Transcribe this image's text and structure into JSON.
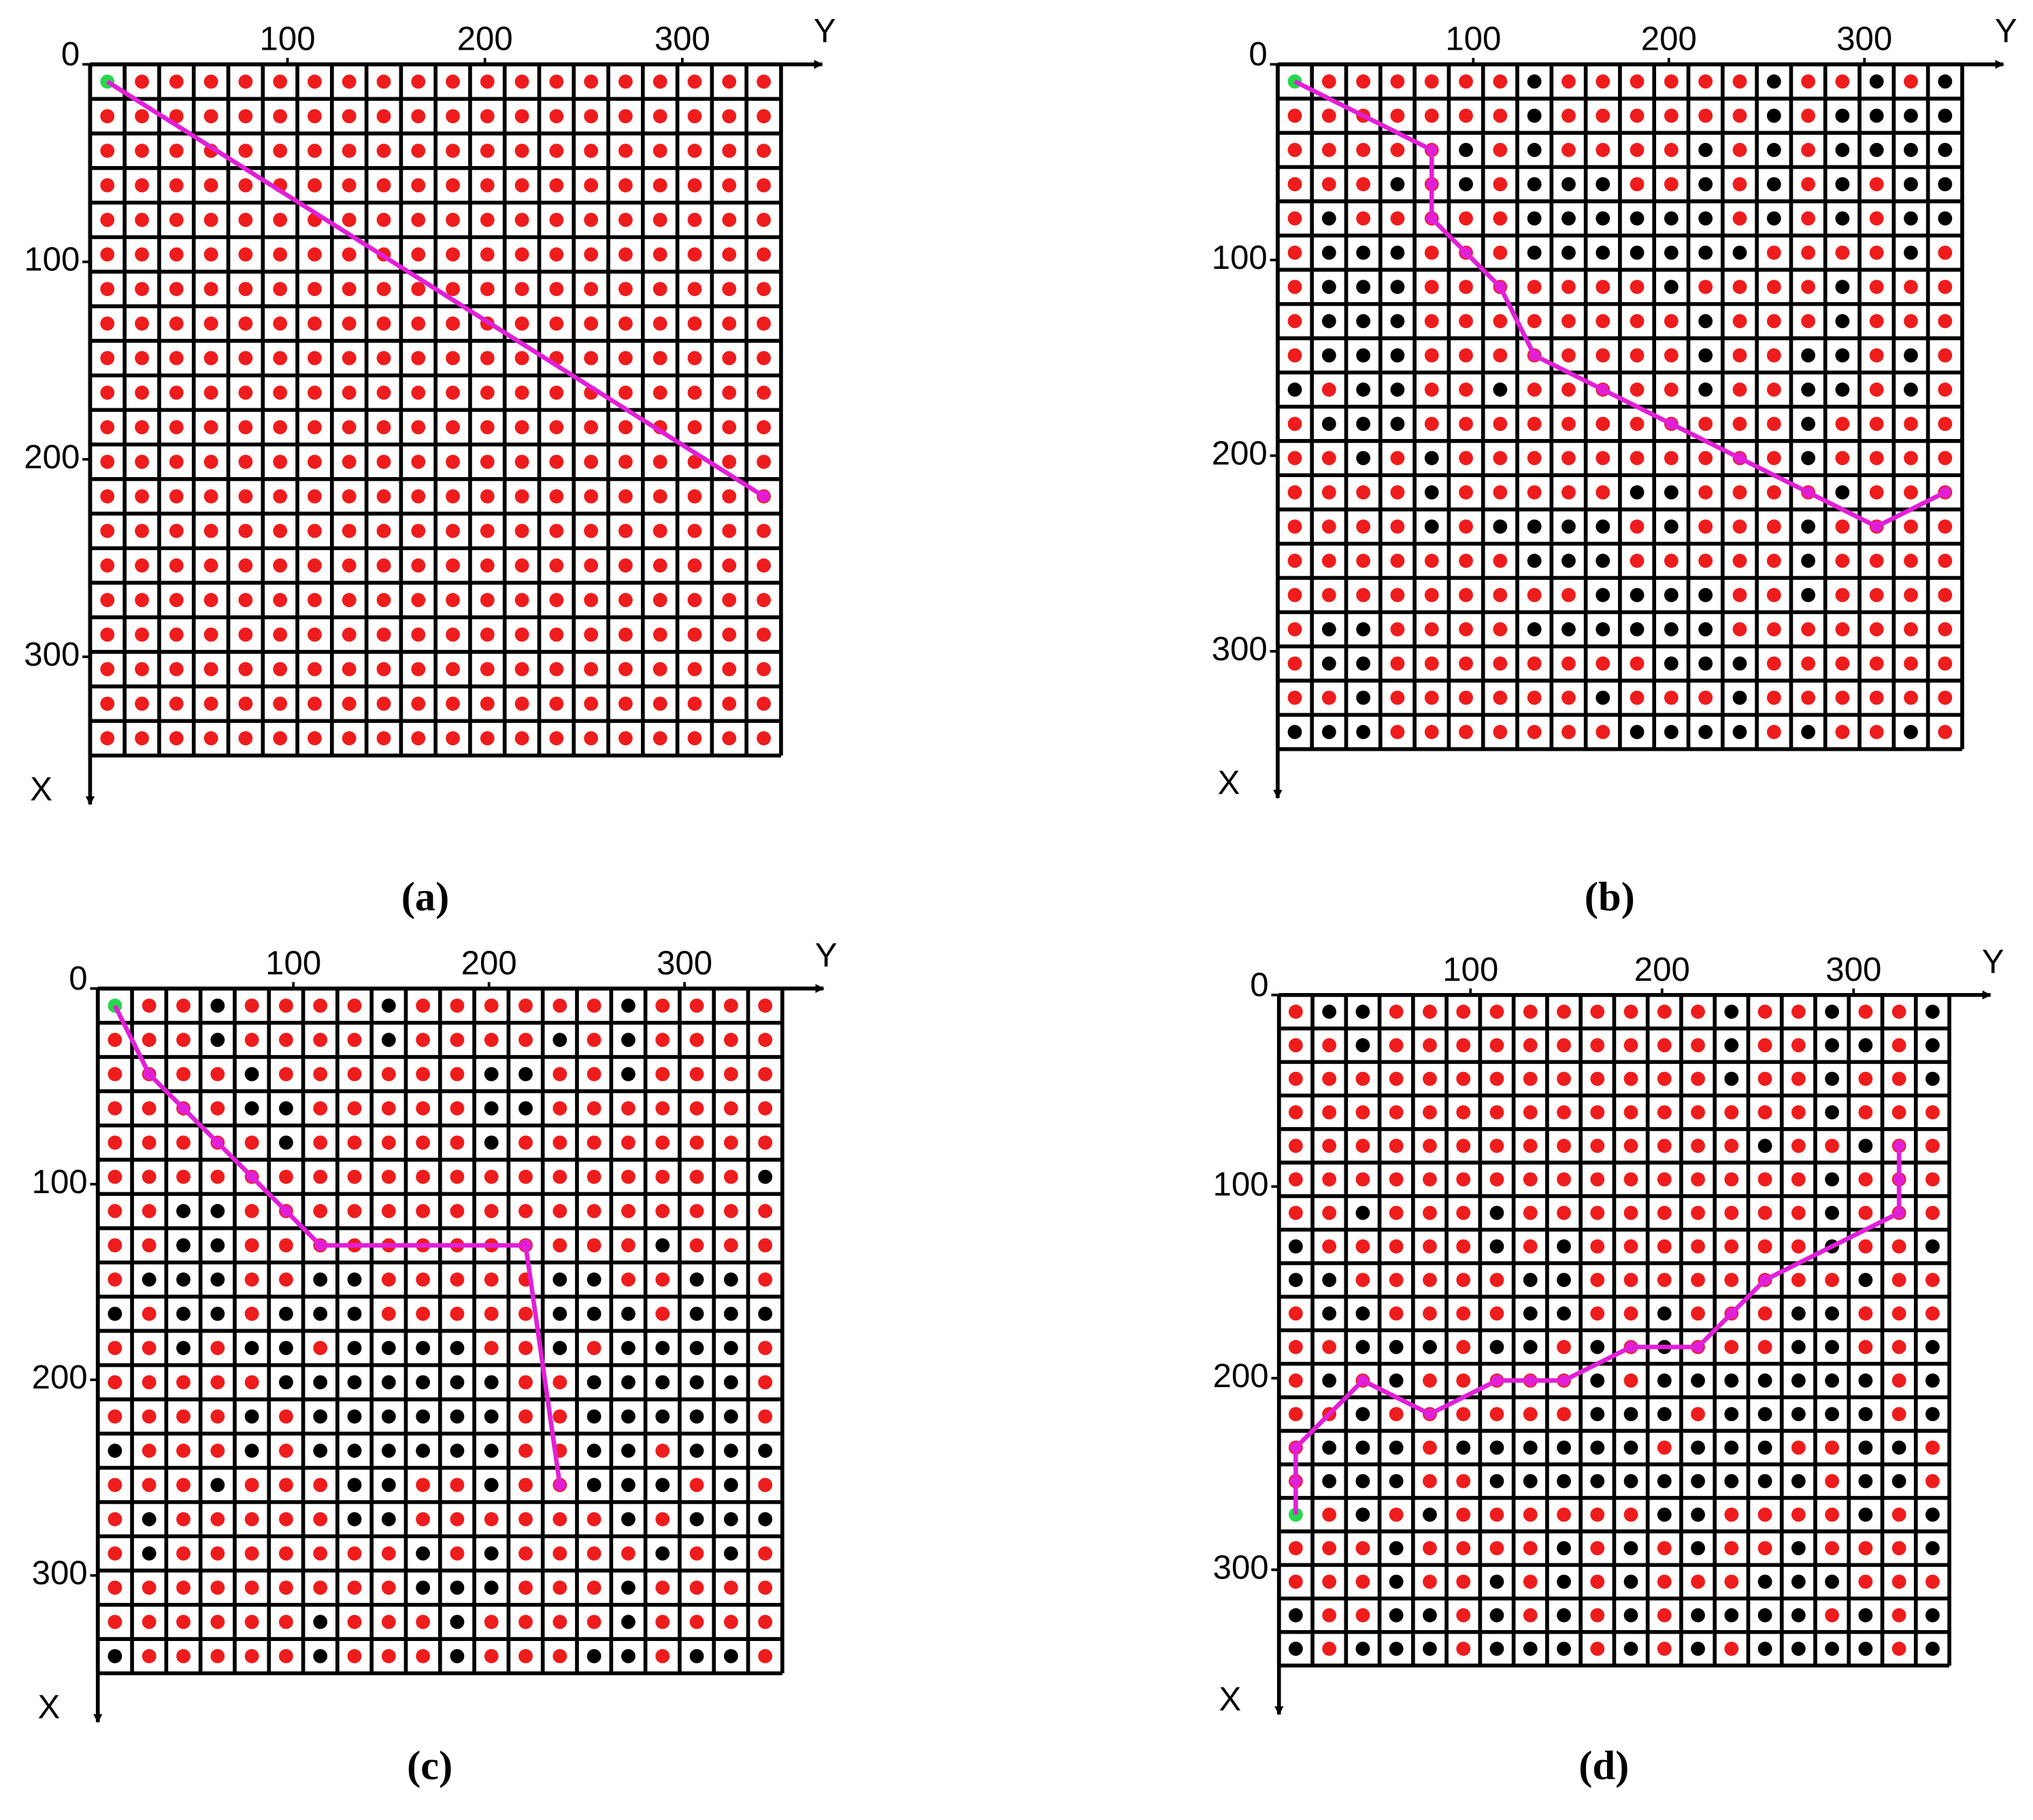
{
  "chart_data": [
    {
      "type": "grid-path",
      "caption": "(a)",
      "xlabel": "X",
      "ylabel": "Y",
      "xlim": [
        0,
        350
      ],
      "ylim": [
        0,
        350
      ],
      "xticks": [
        0,
        100,
        200,
        300
      ],
      "yticks": [
        100,
        200,
        300
      ],
      "grid": [
        "S...................",
        "....................",
        "....................",
        "....................",
        "....................",
        "....................",
        "....................",
        "....................",
        "....................",
        "....................",
        "....................",
        "....................",
        "....................",
        "....................",
        "....................",
        "....................",
        "....................",
        "....................",
        "....................",
        "...................."
      ],
      "path": {
        "x": [
          8.75,
          218.75
        ],
        "y": [
          8.75,
          341.25
        ]
      },
      "colors": {
        "free": "#ee1c1c",
        "obstacle": "#000000",
        "start": "#27d84a",
        "path": "#e21fd8"
      }
    },
    {
      "type": "grid-path",
      "caption": "(b)",
      "xlabel": "X",
      "ylabel": "Y",
      "xlim": [
        0,
        350
      ],
      "ylim": [
        0,
        350
      ],
      "xticks": [
        0,
        100,
        200,
        300
      ],
      "yticks": [
        100,
        200,
        300
      ],
      "grid": [
        "S......#......#..#.#",
        ".......#......#.####",
        ".....#.#....#.#.####",
        "...#.#.###..#.#.#.##",
        ".#.....######.#.#.##",
        ".###...#######....#.",
        ".###.......#....#...",
        ".###........#...#...",
        ".###........#..##.#.",
        "#.##..#.....#..##.#.",
        ".###...........#....",
        "..#.#..........#....",
        "....#.....##....#...",
        "....#.####.#...#....",
        ".......###.....#....",
        ".........####..#....",
        ".##....######.......",
        ".##........###......",
        "..#......#...#......",
        "###.......####.#..#."
      ],
      "path": {
        "x": [
          8.75,
          43.75,
          61.25,
          78.75,
          96.25,
          113.75,
          148.75,
          166.25,
          183.75,
          201.25,
          218.75,
          236.25,
          218.75
        ],
        "y": [
          8.75,
          78.75,
          78.75,
          78.75,
          96.25,
          113.75,
          131.25,
          166.25,
          201.25,
          236.25,
          271.25,
          306.25,
          341.25
        ]
      },
      "colors": {
        "free": "#ee1c1c",
        "obstacle": "#000000",
        "start": "#27d84a",
        "path": "#e21fd8"
      }
    },
    {
      "type": "grid-path",
      "caption": "(c)",
      "xlabel": "X",
      "ylabel": "Y",
      "xlim": [
        0,
        350
      ],
      "ylim": [
        0,
        350
      ],
      "xticks": [
        0,
        100,
        200,
        300
      ],
      "yticks": [
        100,
        200,
        300
      ],
      "grid": [
        "S..#....#......#....",
        "...#....#....#.#....",
        "....#......##..#....",
        "....##.....##.......",
        ".....#.....#........",
        "...................#",
        "..##................",
        "..##............#...",
        ".###..##.....##..##.",
        "#.##.###.....###.###",
        "..#.##.####..#.####.",
        ".....#######..#####.",
        "....#.######..#####.",
        "#...#.######..##.###",
        "...#...##..#..###.#.",
        ".#.....##......#.###",
        ".#.......#.#....#.#.",
        ".........###...#....",
        "......#...#....#....",
        "#.....#...#...##.##."
      ],
      "path": {
        "x": [
          8.75,
          43.75,
          61.25,
          78.75,
          96.25,
          113.75,
          131.25,
          131.25,
          253.75
        ],
        "y": [
          8.75,
          26.25,
          43.75,
          61.25,
          78.75,
          96.25,
          113.75,
          218.75,
          236.25
        ]
      },
      "colors": {
        "free": "#ee1c1c",
        "obstacle": "#000000",
        "start": "#27d84a",
        "path": "#e21fd8"
      }
    },
    {
      "type": "grid-path",
      "caption": "(d)",
      "xlabel": "X",
      "ylabel": "Y",
      "xlim": [
        0,
        350
      ],
      "ylim": [
        0,
        350
      ],
      "xticks": [
        0,
        100,
        200,
        300
      ],
      "yticks": [
        100,
        200,
        300
      ],
      "grid": [
        ".##..........#..#..#",
        "..#..........#..##.#",
        ".............#..#..#",
        "................#...",
        "..............#..#..",
        "................#...",
        "..#...#.........#...",
        "#.....#.#.......#..#",
        "##.....##........#..",
        ".##....##..#...##...",
        "..###.##.#.#...##..#",
        ".#.#.....#.#######.#",
        "..#......###.#####.#",
        ".###.######.###..##.",
        ".###..##########.##.",
        "S.#.#......##....#.#",
        "...#....#.#.#..#...#",
        "...#..#.#.#...###...",
        "#..##.#.#.#.####.#.#",
        "#.###.###.#.#.####.#"
      ],
      "path": {
        "x": [
          271.25,
          253.75,
          236.25,
          201.25,
          218.75,
          201.25,
          201.25,
          201.25,
          183.75,
          183.75,
          166.25,
          148.75,
          113.75,
          96.25,
          78.75
        ],
        "y": [
          8.75,
          8.75,
          8.75,
          43.75,
          78.75,
          113.75,
          131.25,
          148.75,
          183.75,
          218.75,
          236.25,
          253.75,
          323.75,
          323.75,
          323.75
        ]
      },
      "colors": {
        "free": "#ee1c1c",
        "obstacle": "#000000",
        "start": "#27d84a",
        "path": "#e21fd8"
      }
    }
  ]
}
